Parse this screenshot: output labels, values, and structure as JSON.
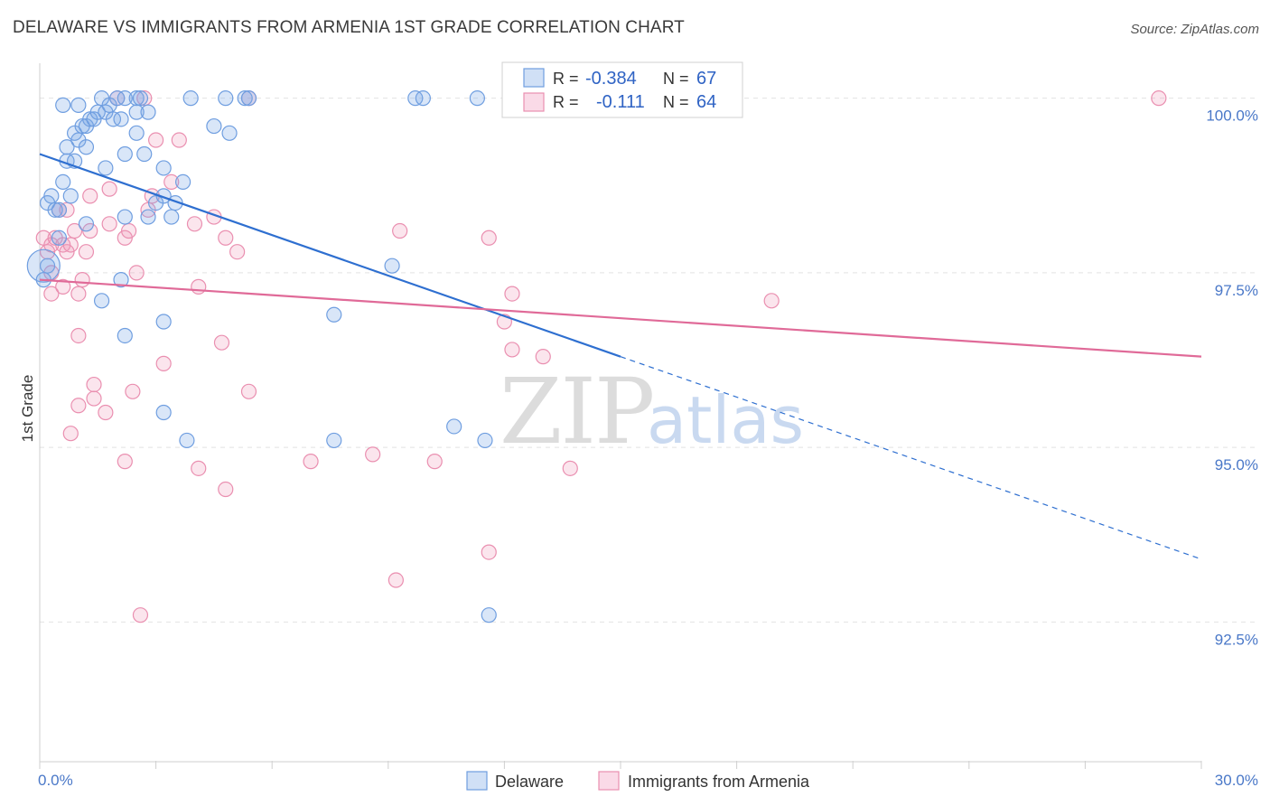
{
  "title": "DELAWARE VS IMMIGRANTS FROM ARMENIA 1ST GRADE CORRELATION CHART",
  "source": "Source: ZipAtlas.com",
  "watermark": {
    "zip": "ZIP",
    "atlas": "atlas"
  },
  "colors": {
    "blue": "#6f9ee0",
    "blue_fill": "rgba(120,165,230,0.28)",
    "blue_line": "#2e6fd0",
    "pink": "#ea8fb0",
    "pink_fill": "rgba(240,150,185,0.25)",
    "pink_line": "#e06a98",
    "tick": "#4a78c8",
    "grid": "#e2e2e2"
  },
  "legend": {
    "rows": [
      {
        "r_label": "R =",
        "r_value": "-0.384",
        "n_label": "N =",
        "n_value": "67",
        "series": "blue"
      },
      {
        "r_label": "R =",
        "r_value": "-0.111",
        "n_label": "N =",
        "n_value": "64",
        "series": "pink"
      }
    ]
  },
  "chart_data": {
    "type": "scatter",
    "title": "DELAWARE VS IMMIGRANTS FROM ARMENIA 1ST GRADE CORRELATION CHART",
    "xlabel": "",
    "ylabel": "1st Grade",
    "xlim": [
      0.0,
      30.0
    ],
    "ylim": [
      90.5,
      100.5
    ],
    "x_tick_labels": [
      "0.0%",
      "30.0%"
    ],
    "y_ticks": [
      92.5,
      95.0,
      97.5,
      100.0
    ],
    "y_tick_labels": [
      "92.5%",
      "95.0%",
      "97.5%",
      "100.0%"
    ],
    "series": [
      {
        "name": "Delaware",
        "color": "blue",
        "trend": {
          "x_start": 0.0,
          "y_start": 99.2,
          "x_end_solid": 15.0,
          "x_end": 30.0,
          "y_end": 93.4
        },
        "points": [
          [
            0.2,
            97.6
          ],
          [
            0.1,
            97.4
          ],
          [
            0.3,
            98.6
          ],
          [
            0.2,
            98.5
          ],
          [
            0.4,
            98.4
          ],
          [
            0.5,
            98.4
          ],
          [
            0.6,
            98.8
          ],
          [
            0.5,
            98.0
          ],
          [
            0.7,
            99.1
          ],
          [
            0.8,
            98.6
          ],
          [
            0.7,
            99.3
          ],
          [
            0.9,
            99.1
          ],
          [
            0.9,
            99.5
          ],
          [
            1.0,
            99.4
          ],
          [
            1.1,
            99.6
          ],
          [
            1.2,
            99.6
          ],
          [
            1.3,
            99.7
          ],
          [
            1.2,
            98.2
          ],
          [
            1.2,
            99.3
          ],
          [
            1.4,
            99.7
          ],
          [
            1.5,
            99.8
          ],
          [
            1.6,
            100.0
          ],
          [
            1.7,
            99.8
          ],
          [
            1.8,
            99.9
          ],
          [
            1.9,
            99.7
          ],
          [
            2.0,
            100.0
          ],
          [
            2.1,
            99.7
          ],
          [
            1.7,
            99.0
          ],
          [
            2.2,
            100.0
          ],
          [
            2.2,
            99.2
          ],
          [
            2.2,
            98.3
          ],
          [
            2.5,
            99.5
          ],
          [
            2.5,
            100.0
          ],
          [
            2.6,
            100.0
          ],
          [
            2.5,
            99.8
          ],
          [
            2.8,
            99.8
          ],
          [
            2.7,
            99.2
          ],
          [
            2.8,
            98.3
          ],
          [
            3.0,
            98.5
          ],
          [
            3.2,
            99.0
          ],
          [
            3.2,
            98.6
          ],
          [
            3.4,
            98.3
          ],
          [
            3.5,
            98.5
          ],
          [
            3.7,
            98.8
          ],
          [
            3.9,
            100.0
          ],
          [
            4.5,
            99.6
          ],
          [
            4.9,
            99.5
          ],
          [
            4.8,
            100.0
          ],
          [
            5.3,
            100.0
          ],
          [
            5.4,
            100.0
          ],
          [
            9.7,
            100.0
          ],
          [
            9.9,
            100.0
          ],
          [
            11.3,
            100.0
          ],
          [
            2.1,
            97.4
          ],
          [
            1.6,
            97.1
          ],
          [
            2.2,
            96.6
          ],
          [
            3.2,
            96.8
          ],
          [
            3.2,
            95.5
          ],
          [
            3.8,
            95.1
          ],
          [
            7.6,
            96.9
          ],
          [
            9.1,
            97.6
          ],
          [
            7.6,
            95.1
          ],
          [
            10.7,
            95.3
          ],
          [
            11.5,
            95.1
          ],
          [
            11.6,
            92.6
          ],
          [
            0.6,
            99.9
          ],
          [
            1.0,
            99.9
          ]
        ]
      },
      {
        "name": "Immigrants from Armenia",
        "color": "pink",
        "trend": {
          "x_start": 0.0,
          "y_start": 97.4,
          "x_end": 30.0,
          "y_end": 96.3
        },
        "points": [
          [
            0.1,
            98.0
          ],
          [
            0.2,
            97.8
          ],
          [
            0.3,
            97.9
          ],
          [
            0.3,
            97.2
          ],
          [
            0.4,
            98.0
          ],
          [
            0.5,
            98.4
          ],
          [
            0.6,
            97.3
          ],
          [
            0.6,
            97.9
          ],
          [
            0.7,
            98.4
          ],
          [
            0.7,
            97.8
          ],
          [
            0.9,
            98.1
          ],
          [
            1.0,
            97.2
          ],
          [
            1.0,
            96.6
          ],
          [
            1.1,
            97.4
          ],
          [
            1.2,
            97.8
          ],
          [
            1.3,
            98.6
          ],
          [
            1.3,
            98.1
          ],
          [
            1.8,
            98.7
          ],
          [
            1.8,
            98.2
          ],
          [
            2.2,
            98.0
          ],
          [
            2.5,
            97.5
          ],
          [
            2.8,
            98.4
          ],
          [
            2.9,
            98.6
          ],
          [
            3.0,
            99.4
          ],
          [
            3.4,
            98.8
          ],
          [
            3.6,
            99.4
          ],
          [
            4.0,
            98.2
          ],
          [
            4.1,
            97.3
          ],
          [
            4.5,
            98.3
          ],
          [
            4.8,
            98.0
          ],
          [
            5.1,
            97.8
          ],
          [
            4.7,
            96.5
          ],
          [
            3.2,
            96.2
          ],
          [
            2.4,
            95.8
          ],
          [
            1.4,
            95.9
          ],
          [
            1.4,
            95.7
          ],
          [
            1.7,
            95.5
          ],
          [
            1.0,
            95.6
          ],
          [
            0.8,
            95.2
          ],
          [
            2.2,
            94.8
          ],
          [
            4.1,
            94.7
          ],
          [
            4.8,
            94.4
          ],
          [
            5.4,
            95.8
          ],
          [
            7.0,
            94.8
          ],
          [
            8.6,
            94.9
          ],
          [
            10.2,
            94.8
          ],
          [
            9.3,
            98.1
          ],
          [
            11.6,
            98.0
          ],
          [
            12.2,
            97.2
          ],
          [
            12.0,
            96.8
          ],
          [
            12.2,
            96.4
          ],
          [
            13.0,
            96.3
          ],
          [
            13.7,
            94.7
          ],
          [
            18.9,
            97.1
          ],
          [
            11.6,
            93.5
          ],
          [
            9.2,
            93.1
          ],
          [
            2.6,
            92.6
          ],
          [
            28.9,
            100.0
          ],
          [
            2.0,
            100.0
          ],
          [
            5.4,
            100.0
          ],
          [
            2.7,
            100.0
          ],
          [
            0.3,
            97.5
          ],
          [
            0.8,
            97.9
          ],
          [
            2.3,
            98.1
          ]
        ]
      }
    ]
  },
  "bottom_legend": [
    {
      "label": "Delaware",
      "color": "blue"
    },
    {
      "label": "Immigrants from Armenia",
      "color": "pink"
    }
  ]
}
